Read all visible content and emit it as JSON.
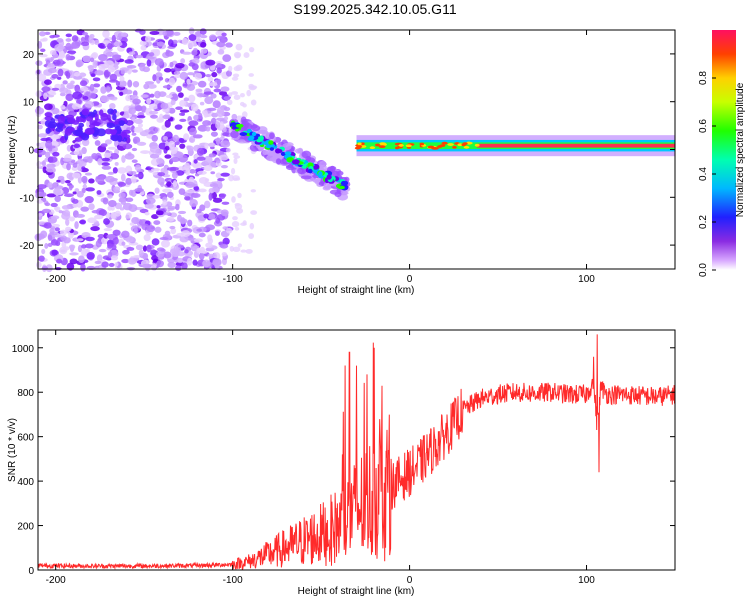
{
  "figure": {
    "title": "S199.2025.342.10.05.G11"
  },
  "chart_data": [
    {
      "type": "heatmap",
      "name": "spectrogram",
      "xlabel": "Height of straight line (km)",
      "ylabel": "Frequency (Hz)",
      "xlim": [
        -210,
        150
      ],
      "ylim": [
        -25,
        25
      ],
      "xticks": [
        -200,
        -100,
        0,
        100
      ],
      "yticks": [
        -20,
        -10,
        0,
        10,
        20
      ],
      "colorbar": {
        "label": "Normalized spectral amplitude",
        "range": [
          0.0,
          1.0
        ],
        "ticks": [
          "0.0",
          "0.2",
          "0.4",
          "0.6",
          "0.8"
        ],
        "tick_values": [
          0.0,
          0.2,
          0.4,
          0.6,
          0.8
        ]
      },
      "features": [
        {
          "description": "broadband noise",
          "x_range": [
            -210,
            -102
          ],
          "y_range": [
            -25,
            25
          ],
          "amplitude": 0.15
        },
        {
          "description": "signal onset, descending trace",
          "x_start": -100,
          "y_start": 5,
          "x_end": -35,
          "y_end": -8,
          "amplitude": 0.35
        },
        {
          "description": "steady carrier",
          "x_range": [
            -30,
            150
          ],
          "y": 0.8,
          "amplitude": 0.9
        }
      ]
    },
    {
      "type": "line",
      "name": "snr",
      "xlabel": "Height of straight line (km)",
      "ylabel": "SNR (10 * v/v)",
      "xlim": [
        -210,
        150
      ],
      "ylim": [
        0,
        1080
      ],
      "xticks": [
        -200,
        -100,
        0,
        100
      ],
      "yticks": [
        0,
        200,
        400,
        600,
        800,
        1000
      ],
      "color": "#ff2a2a",
      "series": [
        {
          "name": "SNR",
          "x": [
            -210,
            -180,
            -150,
            -120,
            -100,
            -90,
            -80,
            -70,
            -60,
            -50,
            -45,
            -40,
            -35,
            -30,
            -25,
            -20,
            -15,
            -10,
            -5,
            0,
            5,
            10,
            15,
            20,
            25,
            30,
            40,
            50,
            60,
            70,
            80,
            90,
            100,
            104,
            106,
            108,
            112,
            120,
            130,
            140,
            150
          ],
          "y": [
            20,
            18,
            18,
            20,
            25,
            40,
            70,
            100,
            130,
            160,
            180,
            200,
            230,
            270,
            300,
            330,
            360,
            380,
            410,
            440,
            470,
            520,
            560,
            610,
            660,
            720,
            770,
            790,
            800,
            795,
            800,
            790,
            790,
            850,
            650,
            820,
            790,
            790,
            785,
            780,
            790
          ]
        },
        {
          "name": "spikes",
          "x": [
            -34,
            -30,
            -24,
            -20,
            106,
            104,
            107
          ],
          "y": [
            980,
            920,
            880,
            1000,
            1060,
            960,
            440
          ]
        }
      ]
    }
  ]
}
